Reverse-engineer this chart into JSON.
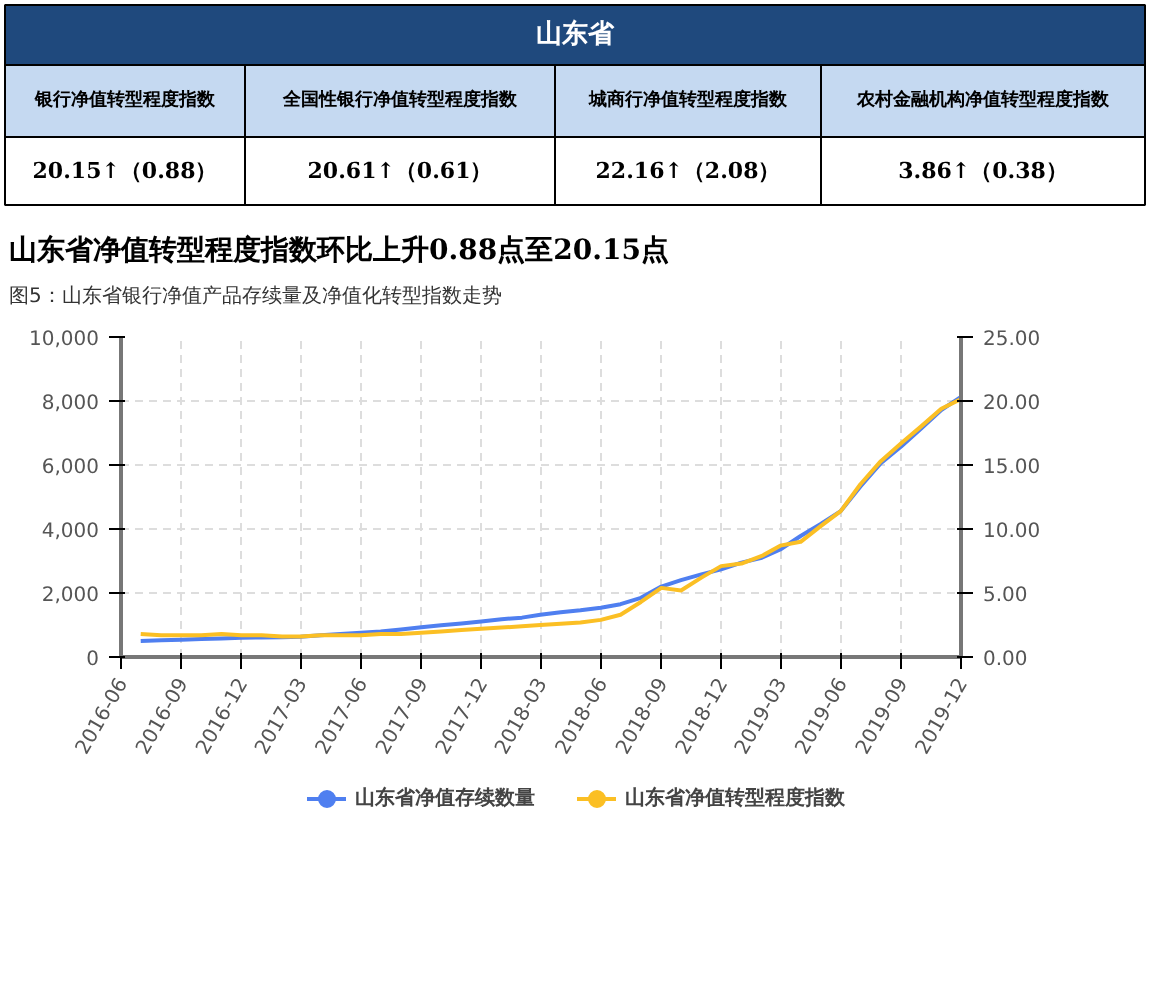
{
  "chart_data": {
    "type": "line",
    "title": "山东省净值转型程度指数环比上升0.88点至20.15点",
    "subtitle": "图5：山东省银行净值产品存续量及净值化转型指数走势",
    "annotations": [
      "山东省",
      "银行净值转型程度指数",
      "全国性银行净值转型程度指数",
      "城商行净值转型程度指数",
      "农村金融机构净值转型程度指数",
      "20.15↑（0.88）",
      "20.61↑（0.61）",
      "22.16↑（2.08）",
      "3.86↑（0.38）"
    ],
    "x": [
      "2016-07",
      "2016-08",
      "2016-09",
      "2016-10",
      "2016-11",
      "2016-12",
      "2017-01",
      "2017-02",
      "2017-03",
      "2017-04",
      "2017-05",
      "2017-06",
      "2017-07",
      "2017-08",
      "2017-09",
      "2017-10",
      "2017-11",
      "2017-12",
      "2018-01",
      "2018-02",
      "2018-03",
      "2018-04",
      "2018-05",
      "2018-06",
      "2018-07",
      "2018-08",
      "2018-09",
      "2018-10",
      "2018-11",
      "2018-12",
      "2019-01",
      "2019-02",
      "2019-03",
      "2019-04",
      "2019-05",
      "2019-06",
      "2019-07",
      "2019-08",
      "2019-09",
      "2019-10",
      "2019-11",
      "2019-12"
    ],
    "series": [
      {
        "name": "山东省净值存续数量",
        "color": "#4f7ff0",
        "values": [
          500,
          520,
          540,
          560,
          580,
          600,
          610,
          620,
          630,
          680,
          720,
          760,
          800,
          860,
          930,
          990,
          1050,
          1110,
          1180,
          1230,
          1320,
          1400,
          1460,
          1540,
          1650,
          1850,
          2200,
          2400,
          2580,
          2740,
          2950,
          3100,
          3360,
          3780,
          4150,
          4560,
          5330,
          6060,
          6580,
          7130,
          7720,
          8130
        ]
      },
      {
        "name": "山东省净值转型程度指数",
        "color": "#fbbf24",
        "axis": "y2",
        "values": [
          1.8,
          1.7,
          1.7,
          1.7,
          1.8,
          1.7,
          1.7,
          1.6,
          1.6,
          1.7,
          1.7,
          1.7,
          1.8,
          1.8,
          1.9,
          2.0,
          2.1,
          2.2,
          2.3,
          2.4,
          2.5,
          2.6,
          2.7,
          2.9,
          3.3,
          4.3,
          5.4,
          5.2,
          6.2,
          7.1,
          7.3,
          7.9,
          8.7,
          9.0,
          10.2,
          11.4,
          13.5,
          15.3,
          16.7,
          18.0,
          19.4,
          20.15
        ]
      }
    ],
    "xlim": [
      "2016-06",
      "2019-12"
    ],
    "xticks": [
      "2016-06",
      "2016-09",
      "2016-12",
      "2017-03",
      "2017-06",
      "2017-09",
      "2017-12",
      "2018-03",
      "2018-06",
      "2018-09",
      "2018-12",
      "2019-03",
      "2019-06",
      "2019-09",
      "2019-12"
    ],
    "ylim": [
      0,
      10000
    ],
    "yticks": [
      {
        "value": 0,
        "label": "0"
      },
      {
        "value": 2000,
        "label": "2,000"
      },
      {
        "value": 4000,
        "label": "4,000"
      },
      {
        "value": 6000,
        "label": "6,000"
      },
      {
        "value": 8000,
        "label": "8,000"
      },
      {
        "value": 10000,
        "label": "10,000"
      }
    ],
    "y2lim": [
      0,
      25
    ],
    "y2ticks": [
      {
        "value": 0,
        "label": "0.00"
      },
      {
        "value": 5,
        "label": "5.00"
      },
      {
        "value": 10,
        "label": "10.00"
      },
      {
        "value": 15,
        "label": "15.00"
      },
      {
        "value": 20,
        "label": "20.00"
      },
      {
        "value": 25,
        "label": "25.00"
      }
    ],
    "grid": true,
    "legend": "bottom",
    "line_style": "solid"
  }
}
